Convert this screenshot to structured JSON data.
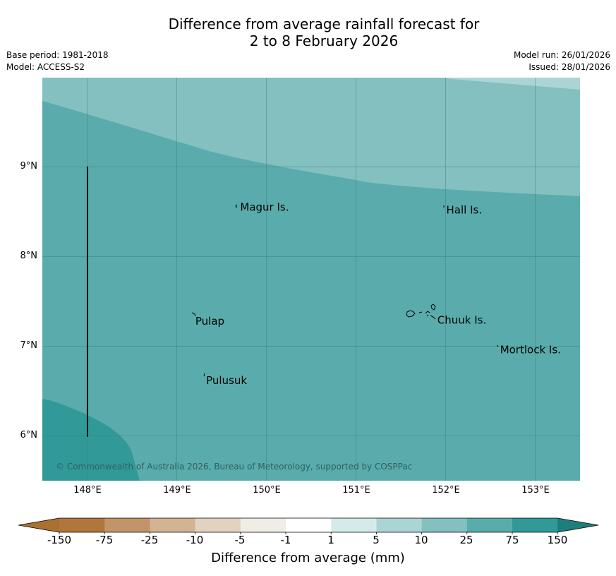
{
  "header": {
    "title_line1": "Difference from average rainfall forecast for",
    "title_line2": "2 to 8 February 2026",
    "base_period": "Base period: 1981-2018",
    "model": "Model: ACCESS-S2",
    "model_run": "Model run: 26/01/2026",
    "issued": "Issued: 28/01/2026"
  },
  "map": {
    "lon_range": [
      147.5,
      153.5
    ],
    "lat_range": [
      5.5,
      10.0
    ],
    "y_axis_labels": [
      "9°N",
      "8°N",
      "7°N",
      "6°N"
    ],
    "x_axis_labels": [
      "148°E",
      "149°E",
      "150°E",
      "151°E",
      "152°E",
      "153°E"
    ],
    "places": [
      {
        "name": "Magur Is.",
        "lon": 149.7,
        "lat": 8.55
      },
      {
        "name": "Hall Is.",
        "lon": 152.0,
        "lat": 8.52
      },
      {
        "name": "Pulap",
        "lon": 149.2,
        "lat": 7.28
      },
      {
        "name": "Chuuk Is.",
        "lon": 151.9,
        "lat": 7.29
      },
      {
        "name": "Mortlock Is.",
        "lon": 152.6,
        "lat": 6.96
      },
      {
        "name": "Pulusuk",
        "lon": 149.32,
        "lat": 6.62
      }
    ],
    "background_category": "25 to 75 mm",
    "copyright": "© Commonwealth of Australia 2026, Bureau of Meteorology, supported by COSPPac"
  },
  "legend": {
    "ticks": [
      "-150",
      "-75",
      "-25",
      "-10",
      "-5",
      "-1",
      "1",
      "5",
      "10",
      "25",
      "75",
      "150"
    ],
    "colors": [
      "#aa7032",
      "#b0763c",
      "#c2946a",
      "#d3b394",
      "#e3d2c0",
      "#f0ede6",
      "#ffffff",
      "#d5ebea",
      "#abd5d5",
      "#84c0c0",
      "#5aacac",
      "#319a98",
      "#1e7e7c"
    ],
    "label": "Difference from average (mm)"
  },
  "palette": {
    "cat_10_25": "#84c0c0",
    "cat_25_75": "#5aacac",
    "cat_75_150": "#319a98",
    "cat_5_10": "#abd5d5"
  }
}
